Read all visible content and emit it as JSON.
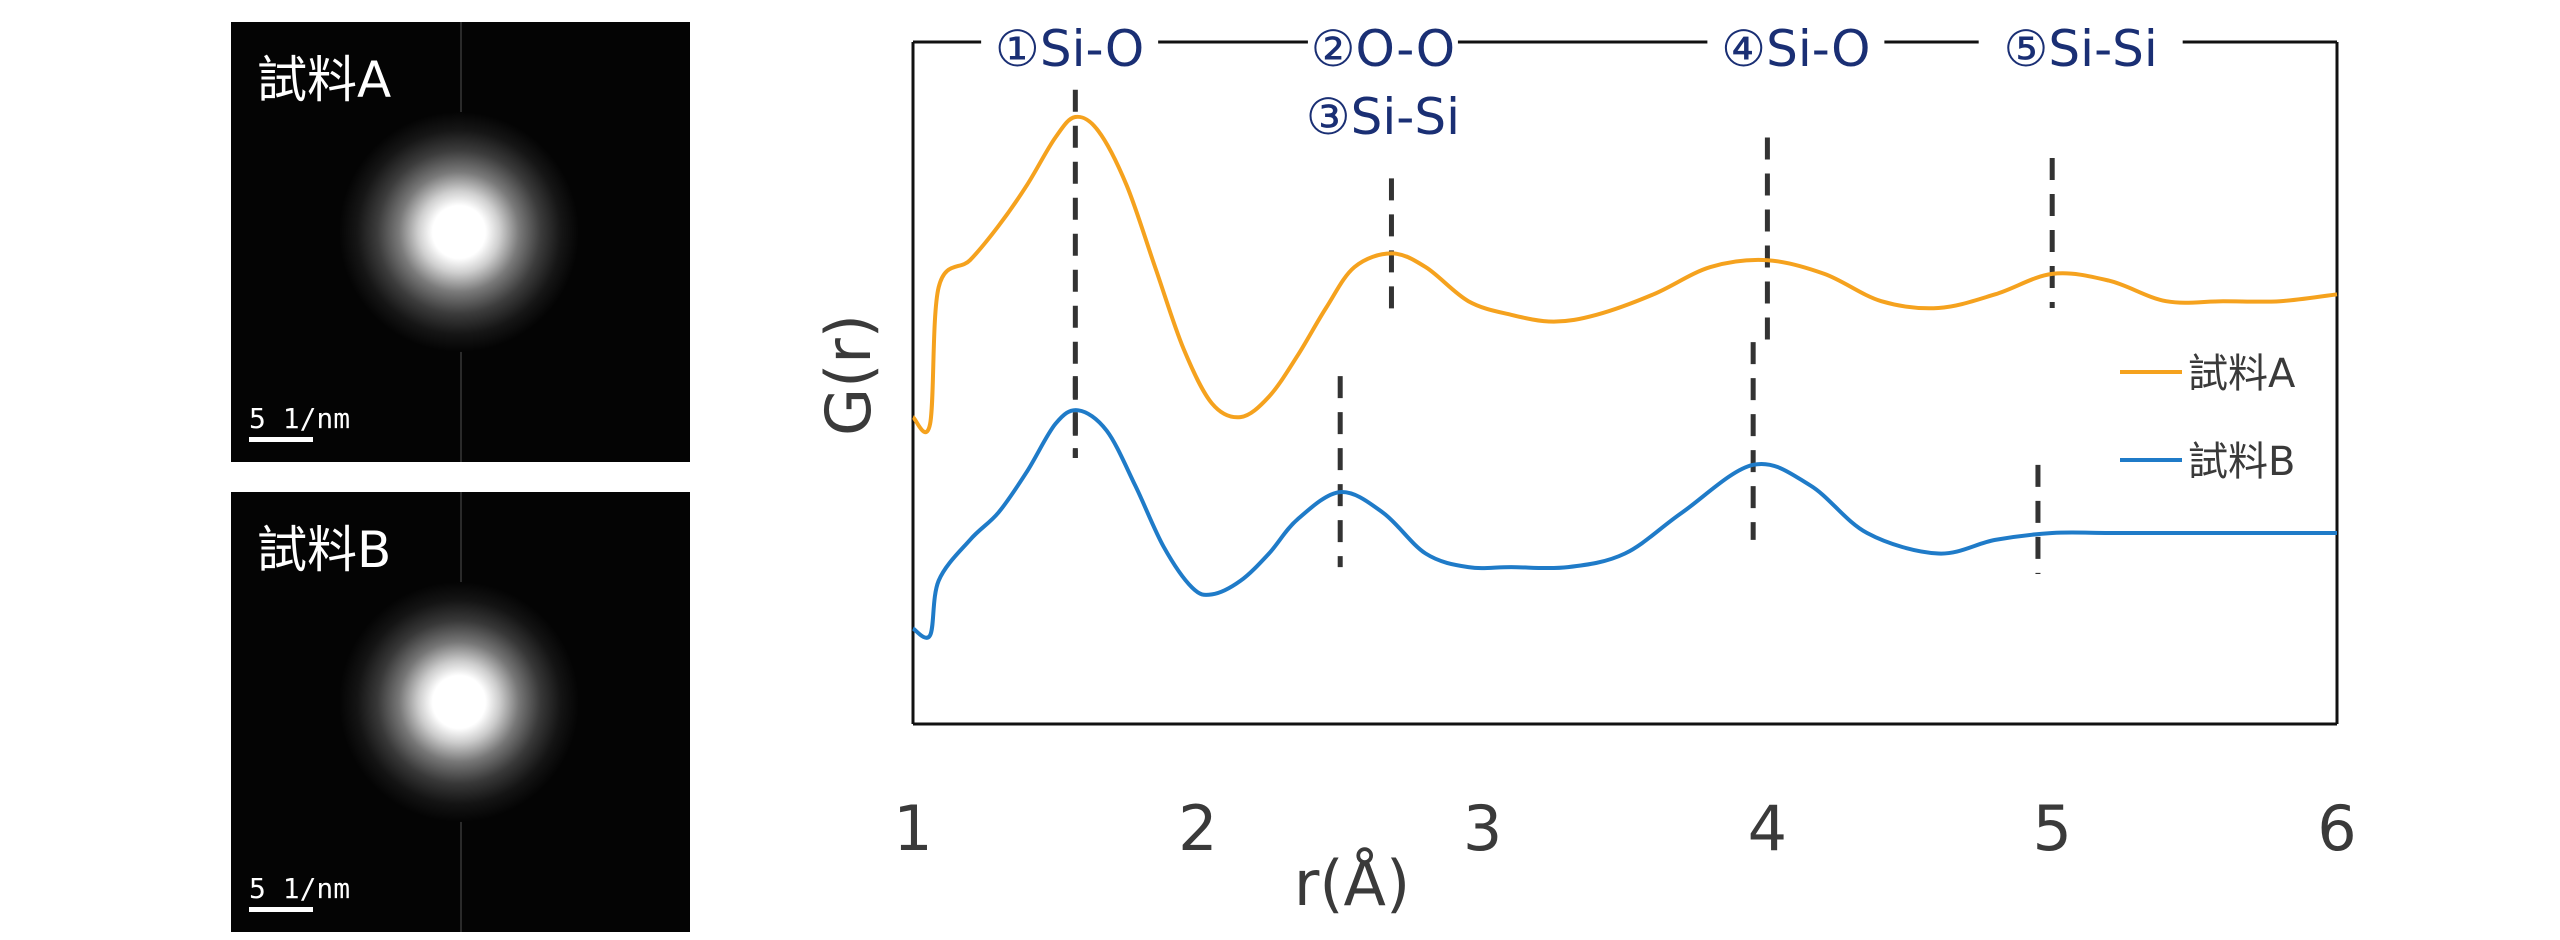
{
  "panels": [
    {
      "label": "試料A",
      "scale_text": "5 1/nm"
    },
    {
      "label": "試料B",
      "scale_text": "5 1/nm"
    }
  ],
  "chart_data": {
    "type": "line",
    "title": "",
    "xlabel": "r(Å)",
    "ylabel": "G(r)",
    "xlim": [
      1,
      6
    ],
    "ylim": [
      0,
      1
    ],
    "x_ticks": [
      "1",
      "2",
      "3",
      "4",
      "5",
      "6"
    ],
    "legend_position": "right",
    "grid": false,
    "series": [
      {
        "name": "試料A",
        "color": "#F5A21E",
        "x": [
          1.0,
          1.06,
          1.09,
          1.2,
          1.3,
          1.4,
          1.5,
          1.57,
          1.65,
          1.75,
          1.85,
          1.95,
          2.05,
          2.15,
          2.25,
          2.35,
          2.45,
          2.55,
          2.68,
          2.8,
          2.95,
          3.1,
          3.25,
          3.4,
          3.6,
          3.8,
          4.0,
          4.2,
          4.4,
          4.6,
          4.8,
          5.0,
          5.2,
          5.4,
          5.6,
          5.8,
          6.0
        ],
        "y": [
          0.45,
          0.44,
          0.64,
          0.68,
          0.73,
          0.79,
          0.86,
          0.89,
          0.87,
          0.79,
          0.67,
          0.55,
          0.47,
          0.45,
          0.48,
          0.54,
          0.61,
          0.67,
          0.69,
          0.67,
          0.62,
          0.6,
          0.59,
          0.6,
          0.63,
          0.67,
          0.68,
          0.66,
          0.62,
          0.61,
          0.63,
          0.66,
          0.65,
          0.62,
          0.62,
          0.62,
          0.63
        ]
      },
      {
        "name": "試料B",
        "color": "#1F7BC8",
        "x": [
          1.0,
          1.06,
          1.09,
          1.2,
          1.3,
          1.4,
          1.5,
          1.58,
          1.68,
          1.78,
          1.88,
          1.98,
          2.05,
          2.15,
          2.25,
          2.35,
          2.5,
          2.65,
          2.8,
          2.95,
          3.1,
          3.3,
          3.5,
          3.7,
          3.95,
          4.15,
          4.35,
          4.6,
          4.8,
          5.0,
          5.2,
          5.4,
          5.6,
          5.8,
          6.0
        ],
        "y": [
          0.14,
          0.13,
          0.21,
          0.27,
          0.31,
          0.37,
          0.44,
          0.46,
          0.43,
          0.35,
          0.26,
          0.2,
          0.19,
          0.21,
          0.25,
          0.3,
          0.34,
          0.31,
          0.25,
          0.23,
          0.23,
          0.23,
          0.25,
          0.31,
          0.38,
          0.35,
          0.28,
          0.25,
          0.27,
          0.28,
          0.28,
          0.28,
          0.28,
          0.28,
          0.28
        ]
      }
    ],
    "peak_markers": {
      "series_a": [
        {
          "x": 1.57,
          "y_top": 0.93,
          "y_bottom": 0.39
        },
        {
          "x": 2.68,
          "y_top": 0.8,
          "y_bottom": 0.6
        },
        {
          "x": 4.0,
          "y_top": 0.86,
          "y_bottom": 0.56
        },
        {
          "x": 5.0,
          "y_top": 0.83,
          "y_bottom": 0.61
        }
      ],
      "series_b": [
        {
          "x": 1.57,
          "y_top": 0.51,
          "y_bottom": 0.39
        },
        {
          "x": 2.5,
          "y_top": 0.51,
          "y_bottom": 0.23
        },
        {
          "x": 3.95,
          "y_top": 0.56,
          "y_bottom": 0.27
        },
        {
          "x": 4.95,
          "y_top": 0.38,
          "y_bottom": 0.22
        }
      ]
    },
    "annotations": [
      {
        "text": "①Si-O",
        "x": 1.55,
        "row": 1
      },
      {
        "text": "②O-O",
        "x": 2.65,
        "row": 1
      },
      {
        "text": "③Si-Si",
        "x": 2.65,
        "row": 2
      },
      {
        "text": "④Si-O",
        "x": 4.1,
        "row": 1
      },
      {
        "text": "⑤Si-Si",
        "x": 5.1,
        "row": 1
      }
    ]
  }
}
